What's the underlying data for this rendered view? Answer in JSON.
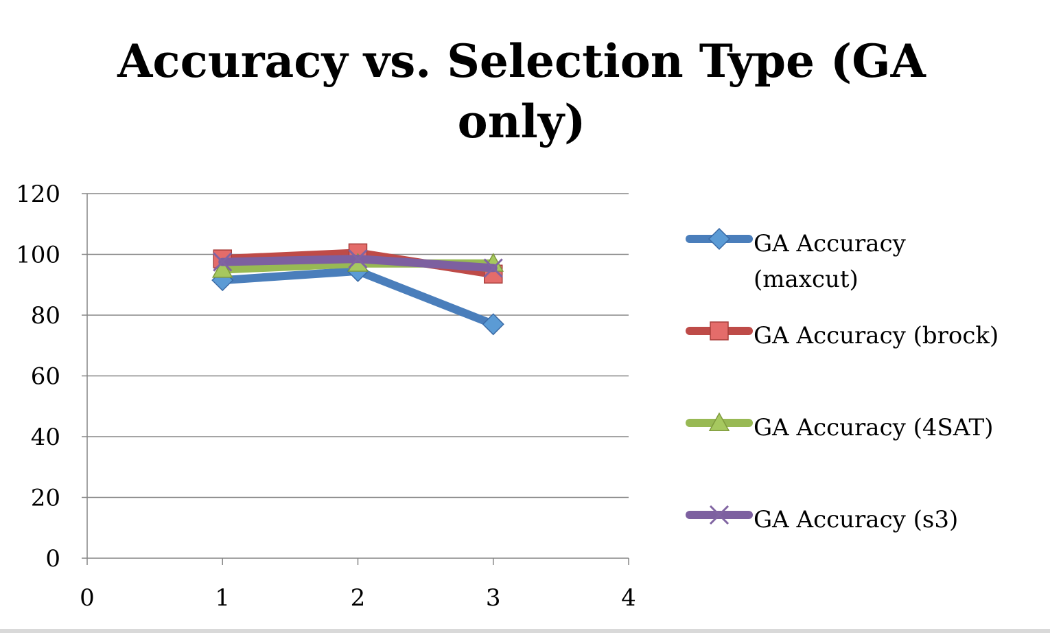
{
  "chart_data": {
    "type": "line",
    "title_lines": [
      "Accuracy vs. Selection Type (GA",
      "only)"
    ],
    "xlabel": "",
    "ylabel": "",
    "xlim": [
      0,
      4
    ],
    "ylim": [
      0,
      120
    ],
    "x_ticks": [
      "0",
      "1",
      "2",
      "3",
      "4"
    ],
    "y_ticks": [
      "0",
      "20",
      "40",
      "60",
      "80",
      "100",
      "120"
    ],
    "grid": true,
    "legend_position": "right",
    "x": [
      1,
      2,
      3
    ],
    "series": [
      {
        "name_lines": [
          "GA Accuracy",
          "(maxcut)"
        ],
        "values": [
          91.5,
          94.5,
          77
        ],
        "color": "#4a7ebb",
        "marker": "diamond",
        "marker_color": "#5b9bd5"
      },
      {
        "name_lines": [
          "GA Accuracy (brock)"
        ],
        "values": [
          98.5,
          100.5,
          93.5
        ],
        "color": "#be4b48",
        "marker": "square",
        "marker_color": "#e46c6a"
      },
      {
        "name_lines": [
          "GA Accuracy (4SAT)"
        ],
        "values": [
          95,
          97,
          97
        ],
        "color": "#98b954",
        "marker": "triangle",
        "marker_color": "#a6c85f"
      },
      {
        "name_lines": [
          "GA Accuracy (s3)"
        ],
        "values": [
          97.5,
          98.5,
          95.5
        ],
        "color": "#7d60a0",
        "marker": "x",
        "marker_color": "#8064a2"
      }
    ]
  }
}
